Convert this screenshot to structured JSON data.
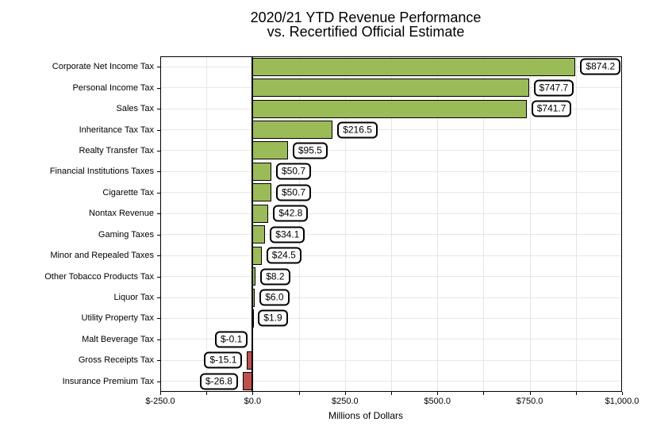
{
  "title": {
    "line1": "2020/21 YTD Revenue Performance",
    "line2": "vs. Recertified Official Estimate"
  },
  "chart_data": {
    "type": "bar",
    "orientation": "horizontal",
    "title": "2020/21 YTD Revenue Performance vs. Recertified Official Estimate",
    "categories": [
      "Corporate Net Income Tax",
      "Personal Income Tax",
      "Sales Tax",
      "Inheritance Tax Tax",
      "Realty Transfer Tax",
      "Financial Institutions Taxes",
      "Cigarette Tax",
      "Nontax Revenue",
      "Gaming Taxes",
      "Minor and Repealed Taxes",
      "Other Tobacco Products Tax",
      "Liquor Tax",
      "Utility Property Tax",
      "Malt Beverage Tax",
      "Gross Receipts Tax",
      "Insurance Premium Tax"
    ],
    "values": [
      874.2,
      747.7,
      741.7,
      216.5,
      95.5,
      50.7,
      50.7,
      42.8,
      34.1,
      24.5,
      8.2,
      6.0,
      1.9,
      -0.1,
      -15.1,
      -26.8
    ],
    "value_labels": [
      "$874.2",
      "$747.7",
      "$741.7",
      "$216.5",
      "$95.5",
      "$50.7",
      "$50.7",
      "$42.8",
      "$34.1",
      "$24.5",
      "$8.2",
      "$6.0",
      "$1.9",
      "$-0.1",
      "$-15.1",
      "$-26.8"
    ],
    "xlabel": "Millions of Dollars",
    "ylabel": "",
    "xlim": [
      -250,
      1000
    ],
    "x_major_ticks": [
      -250,
      0,
      250,
      500,
      750,
      1000
    ],
    "x_tick_labels": [
      "$-250.0",
      "$0.0",
      "$250.0",
      "$500.0",
      "$750.0",
      "$1,000.0"
    ],
    "x_minor_step": 125,
    "grid": true,
    "legend": "none",
    "colors": {
      "positive_bar": "#9bbb59",
      "negative_bar": "#c0504d",
      "bar_border": "#000000",
      "grid_line": "#e6e6e6",
      "panel_border": "#000000",
      "zero_line": "#000000",
      "background": "#ffffff",
      "text": "#000000"
    }
  }
}
